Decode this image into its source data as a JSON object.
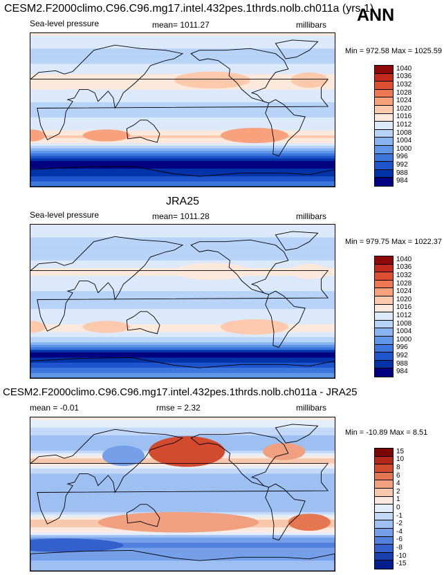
{
  "header": {
    "title": "CESM2.F2000climo.C96.C96.mg17.intel.432pes.1thrds.nolb.ch011a (yrs 1)",
    "season": "ANN"
  },
  "colors": {
    "slp": [
      "#000080",
      "#0033a8",
      "#1f55cc",
      "#3d77dd",
      "#5f96e8",
      "#88b5f2",
      "#b7d3f7",
      "#dbe9fb",
      "#fde8dc",
      "#fcc9ad",
      "#f7a27d",
      "#ee7852",
      "#de4e30",
      "#c32a1c",
      "#8e0a0a"
    ],
    "diff": [
      "#001e8c",
      "#1a3fb0",
      "#3460cc",
      "#5281dd",
      "#759fe8",
      "#9dbff2",
      "#c4d9f7",
      "#e4eefb",
      "#fbe8de",
      "#f7c7ae",
      "#f0a07e",
      "#e47752",
      "#d34b2f",
      "#b52718",
      "#7a0606"
    ]
  },
  "chart_data": [
    {
      "type": "heatmap",
      "panel": "model",
      "variable": "Sea-level pressure",
      "mean_label": "mean= 1011.27",
      "units": "millibars",
      "minmax_label": "Min = 972.58 Max = 1025.59",
      "min": 972.58,
      "max": 1025.59,
      "colorbar_levels": [
        "1040",
        "1036",
        "1032",
        "1028",
        "1024",
        "1020",
        "1016",
        "1012",
        "1008",
        "1004",
        "1000",
        "996",
        "992",
        "988",
        "984"
      ],
      "zonal_profile": [
        {
          "lat": 90,
          "value": 1017
        },
        {
          "lat": 75,
          "value": 1013
        },
        {
          "lat": 60,
          "value": 1009
        },
        {
          "lat": 45,
          "value": 1015
        },
        {
          "lat": 35,
          "value": 1020
        },
        {
          "lat": 20,
          "value": 1014
        },
        {
          "lat": 0,
          "value": 1010
        },
        {
          "lat": -20,
          "value": 1014
        },
        {
          "lat": -32,
          "value": 1021
        },
        {
          "lat": -45,
          "value": 1010
        },
        {
          "lat": -55,
          "value": 996
        },
        {
          "lat": -62,
          "value": 986
        },
        {
          "lat": -70,
          "value": 988
        },
        {
          "lat": -90,
          "value": 1000
        }
      ]
    },
    {
      "type": "heatmap",
      "panel": "observations",
      "case": "JRA25",
      "variable": "Sea-level pressure",
      "mean_label": "mean= 1011.28",
      "units": "millibars",
      "minmax_label": "Min = 979.75 Max = 1022.37",
      "min": 979.75,
      "max": 1022.37,
      "colorbar_levels": [
        "1040",
        "1036",
        "1032",
        "1028",
        "1024",
        "1020",
        "1016",
        "1012",
        "1008",
        "1004",
        "1000",
        "996",
        "992",
        "988",
        "984"
      ],
      "zonal_profile": [
        {
          "lat": 90,
          "value": 1015
        },
        {
          "lat": 75,
          "value": 1012
        },
        {
          "lat": 60,
          "value": 1008
        },
        {
          "lat": 45,
          "value": 1013
        },
        {
          "lat": 35,
          "value": 1017
        },
        {
          "lat": 20,
          "value": 1013
        },
        {
          "lat": 0,
          "value": 1010
        },
        {
          "lat": -20,
          "value": 1014
        },
        {
          "lat": -32,
          "value": 1018
        },
        {
          "lat": -45,
          "value": 1010
        },
        {
          "lat": -55,
          "value": 997
        },
        {
          "lat": -62,
          "value": 986
        },
        {
          "lat": -70,
          "value": 990
        },
        {
          "lat": -90,
          "value": 1005
        }
      ]
    },
    {
      "type": "heatmap",
      "panel": "difference",
      "title": "CESM2.F2000climo.C96.C96.mg17.intel.432pes.1thrds.nolb.ch011a - JRA25",
      "mean_label": "mean =  -0.01",
      "rmse_label": "rmse =  2.32",
      "units": "millibars",
      "minmax_label": "Min = -10.89 Max =   8.51",
      "min": -10.89,
      "max": 8.51,
      "colorbar_levels": [
        "15",
        "10",
        "8",
        "6",
        "4",
        "2",
        "1",
        "0",
        "-1",
        "-2",
        "-4",
        "-6",
        "-8",
        "-10",
        "-15"
      ],
      "zonal_profile": [
        {
          "lat": 90,
          "value": 1.5
        },
        {
          "lat": 70,
          "value": -1
        },
        {
          "lat": 55,
          "value": -2
        },
        {
          "lat": 40,
          "value": 3
        },
        {
          "lat": 25,
          "value": -1
        },
        {
          "lat": 0,
          "value": -2
        },
        {
          "lat": -20,
          "value": -1
        },
        {
          "lat": -35,
          "value": 3
        },
        {
          "lat": -45,
          "value": 1
        },
        {
          "lat": -58,
          "value": -5
        },
        {
          "lat": -68,
          "value": -3
        },
        {
          "lat": -90,
          "value": -1
        }
      ]
    }
  ]
}
